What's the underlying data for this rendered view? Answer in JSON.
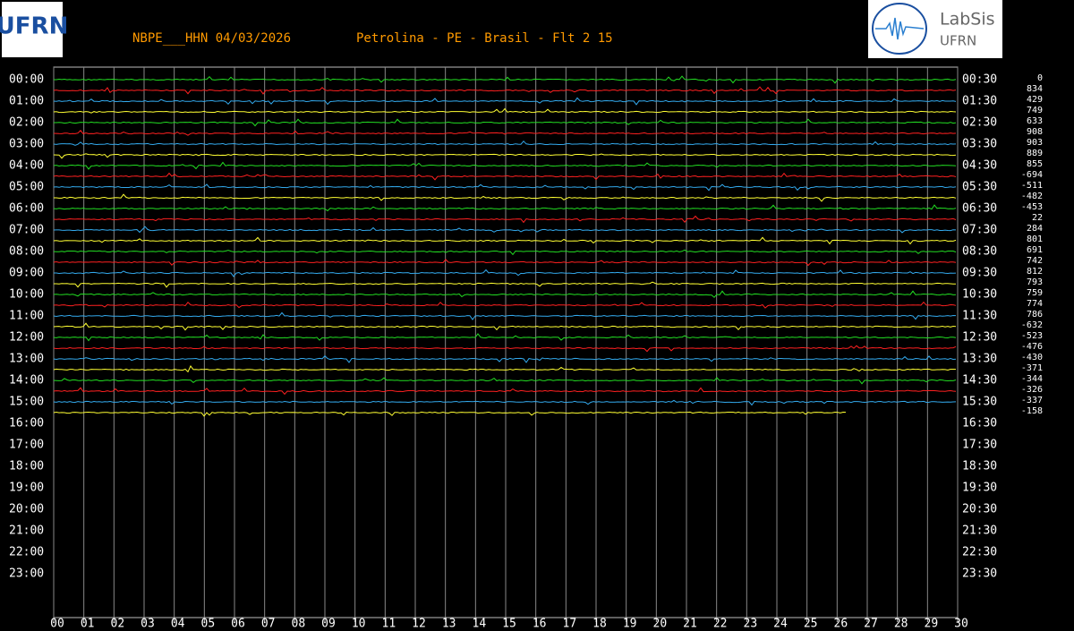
{
  "header": {
    "station": "NBPE___HHN 04/03/2026",
    "location": "Petrolina - PE - Brasil - Flt 2 15"
  },
  "logos": {
    "left": "UFRN",
    "right_title": "LabSis",
    "right_subtitle": "UFRN"
  },
  "left_labels": [
    "00:00",
    "01:00",
    "02:00",
    "03:00",
    "04:00",
    "05:00",
    "06:00",
    "07:00",
    "08:00",
    "09:00",
    "10:00",
    "11:00",
    "12:00",
    "13:00",
    "14:00",
    "15:00",
    "16:00",
    "17:00",
    "18:00",
    "19:00",
    "20:00",
    "21:00",
    "22:00",
    "23:00"
  ],
  "right_labels": [
    "00:30",
    "01:30",
    "02:30",
    "03:30",
    "04:30",
    "05:30",
    "06:30",
    "07:30",
    "08:30",
    "09:30",
    "10:30",
    "11:30",
    "12:30",
    "13:30",
    "14:30",
    "15:30",
    "16:30",
    "17:30",
    "18:30",
    "19:30",
    "20:30",
    "21:30",
    "22:30",
    "23:30"
  ],
  "row_values": [
    0,
    834,
    429,
    749,
    633,
    908,
    903,
    889,
    855,
    -694,
    -511,
    -482,
    -453,
    22,
    284,
    801,
    691,
    742,
    812,
    793,
    759,
    774,
    786,
    -632,
    -523,
    -476,
    -430,
    -371,
    -344,
    -326,
    -337,
    -158
  ],
  "x_ticks": [
    "00",
    "01",
    "02",
    "03",
    "04",
    "05",
    "06",
    "07",
    "08",
    "09",
    "10",
    "11",
    "12",
    "13",
    "14",
    "15",
    "16",
    "17",
    "18",
    "19",
    "20",
    "21",
    "22",
    "23",
    "24",
    "25",
    "26",
    "27",
    "28",
    "29",
    "30"
  ]
}
